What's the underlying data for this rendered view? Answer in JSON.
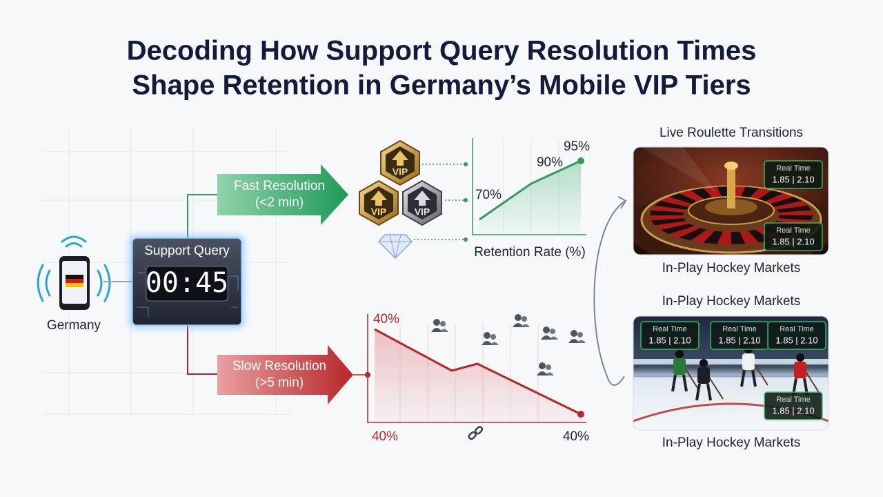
{
  "title_lines": [
    "Decoding How Support Query Resolution Times",
    "Shape Retention in Germany’s Mobile VIP Tiers"
  ],
  "source": {
    "label": "Germany"
  },
  "query": {
    "label": "Support Query",
    "timer": "00:45"
  },
  "fast": {
    "label": "Fast Resolution",
    "detail": "(<2 min)"
  },
  "slow": {
    "label": "Slow Resolution",
    "detail": "(>5 min)"
  },
  "vip_badges": [
    "VIP",
    "VIP",
    "VIP"
  ],
  "retention_chart": {
    "labels": [
      "70%",
      "90%",
      "95%"
    ],
    "axis_label": "Retention Rate (%)"
  },
  "drop_chart": {
    "top_label": "40%",
    "bottom_left_label": "40%",
    "bottom_right_label": "40%"
  },
  "panels": [
    {
      "title": "Live Roulette Transitions",
      "odds": [
        {
          "label": "Real Time",
          "value": "1.85 | 2.10"
        },
        {
          "label": "Real Time",
          "value": "1.85 | 2.10"
        }
      ],
      "caption": "In-Play Hockey Markets"
    },
    {
      "title": "In-Play Hockey Markets",
      "odds": [
        {
          "label": "Real Time",
          "value": "1.85 | 2.10"
        },
        {
          "label": "Real Time",
          "value": "1.85 | 2.10"
        },
        {
          "label": "Real Time",
          "value": "1.85 | 2.10"
        },
        {
          "label": "Real Time",
          "value": "1.85 | 2.10"
        }
      ],
      "caption": "In-Play Hockey Markets"
    }
  ]
}
